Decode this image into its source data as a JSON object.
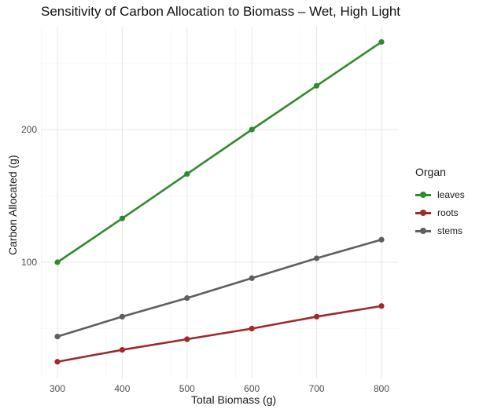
{
  "chart_data": {
    "type": "line",
    "title": "Sensitivity of Carbon Allocation to Biomass – Wet, High Light",
    "xlabel": "Total Biomass (g)",
    "ylabel": "Carbon Allocated (g)",
    "x": [
      300,
      400,
      500,
      600,
      700,
      800
    ],
    "x_ticks": [
      "300",
      "400",
      "500",
      "600",
      "700",
      "800"
    ],
    "y_ticks": [
      "100",
      "200"
    ],
    "xlim": [
      275,
      825
    ],
    "ylim": [
      10,
      275
    ],
    "grid": true,
    "legend_title": "Organ",
    "legend_position": "right",
    "series": [
      {
        "name": "leaves",
        "color": "#2e8b2e",
        "values": [
          100,
          133,
          166.5,
          200,
          233,
          266
        ]
      },
      {
        "name": "roots",
        "color": "#9e2a2b",
        "values": [
          25,
          34,
          42,
          50,
          59,
          67
        ]
      },
      {
        "name": "stems",
        "color": "#5f5f5f",
        "values": [
          44,
          59,
          73,
          88,
          103,
          117
        ]
      }
    ]
  }
}
